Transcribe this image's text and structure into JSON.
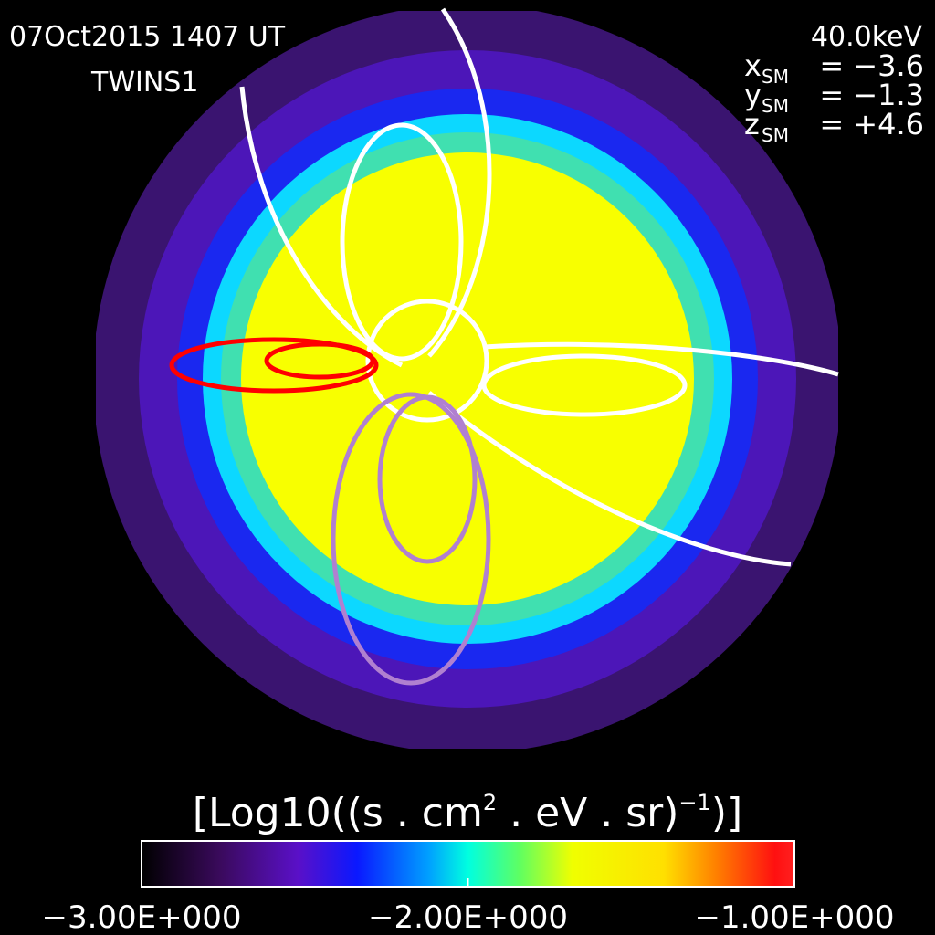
{
  "header": {
    "date": "07Oct2015 1407 UT",
    "satellite": "TWINS1"
  },
  "position": {
    "energy": "40.0keV",
    "coords": [
      {
        "axis": "x",
        "frame": "SM",
        "value": "= −3.6"
      },
      {
        "axis": "y",
        "frame": "SM",
        "value": "= −1.3"
      },
      {
        "axis": "z",
        "frame": "SM",
        "value": "= +4.6"
      }
    ]
  },
  "colorbar": {
    "title": {
      "open": "[Log10((s . cm",
      "sq": "2",
      "mid": " . eV . sr)",
      "exp": "−1",
      "close": ")]"
    },
    "range": [
      -3,
      -1
    ],
    "ticks": [
      {
        "value": -3,
        "label": "−3.00E+000"
      },
      {
        "value": -2,
        "label": "−2.00E+000"
      },
      {
        "value": -1,
        "label": "−1.00E+000"
      }
    ]
  }
}
